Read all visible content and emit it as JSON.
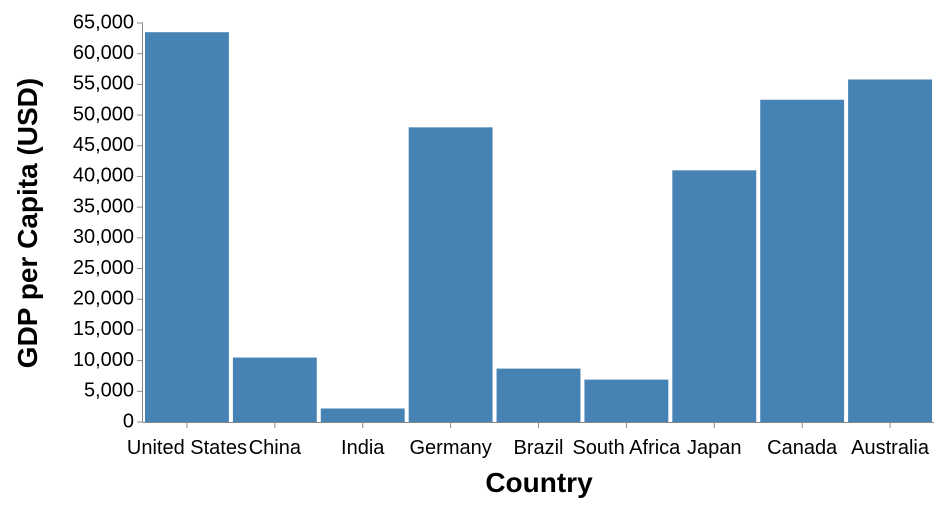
{
  "chart_data": {
    "type": "bar",
    "title": "",
    "xlabel": "Country",
    "ylabel": "GDP per Capita (USD)",
    "categories": [
      "United States",
      "China",
      "India",
      "Germany",
      "Brazil",
      "South Africa",
      "Japan",
      "Canada",
      "Australia"
    ],
    "values": [
      63500,
      10500,
      2200,
      48000,
      8700,
      6900,
      41000,
      52500,
      55800
    ],
    "ylim": [
      0,
      65000
    ],
    "yticks": [
      0,
      5000,
      10000,
      15000,
      20000,
      25000,
      30000,
      35000,
      40000,
      45000,
      50000,
      55000,
      60000,
      65000
    ],
    "ytick_labels": [
      "0",
      "5,000",
      "10,000",
      "15,000",
      "20,000",
      "25,000",
      "30,000",
      "35,000",
      "40,000",
      "45,000",
      "50,000",
      "55,000",
      "60,000",
      "65,000"
    ],
    "bar_color": "#4682b4",
    "axis_color": "#888888",
    "grid": false
  }
}
